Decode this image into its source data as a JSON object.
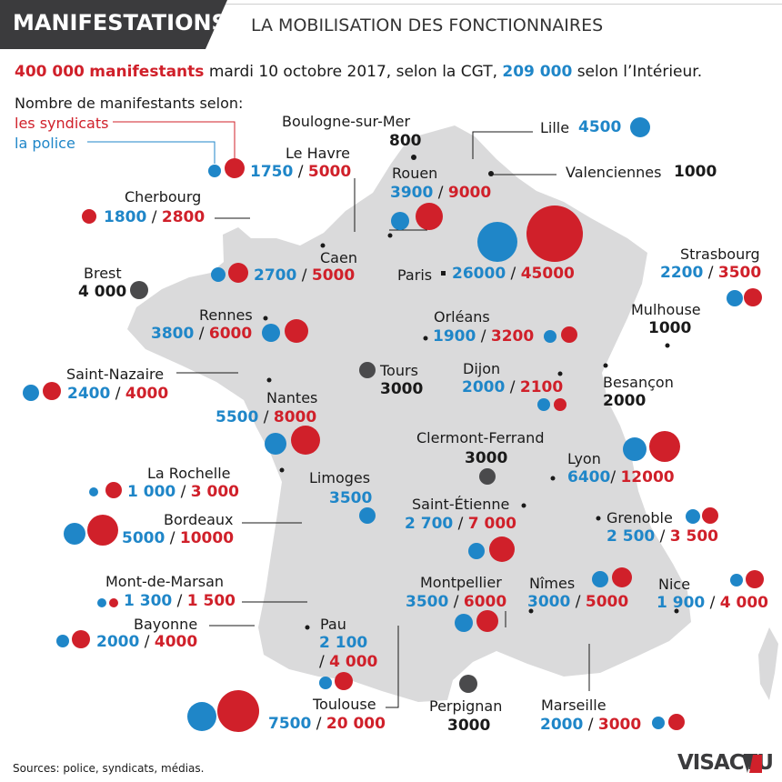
{
  "header": {
    "banner": "MANIFESTATIONS",
    "subtitle": "LA MOBILISATION DES FONCTIONNAIRES"
  },
  "headline": {
    "total_cgt": "400 000",
    "unit": "manifestants",
    "text_mid": "mardi 10 octobre 2017, selon la CGT,",
    "total_interior": "209 000",
    "text_end": "selon l’Intérieur."
  },
  "legend": {
    "title": "Nombre de manifestants selon:",
    "unions": "les syndicats",
    "police": "la police"
  },
  "colors": {
    "unions": "#d0202a",
    "police": "#1f86c8",
    "single": "#4a4a4c",
    "land": "#dadadb"
  },
  "cities": [
    {
      "name": "Boulogne-sur-Mer",
      "single": "800"
    },
    {
      "name": "Lille",
      "police": "4500"
    },
    {
      "name": "Le Havre",
      "police": "1750",
      "unions": "5000"
    },
    {
      "name": "Rouen",
      "police": "3900",
      "unions": "9000"
    },
    {
      "name": "Valenciennes",
      "single": "1000"
    },
    {
      "name": "Cherbourg",
      "police": "1800",
      "unions": "2800"
    },
    {
      "name": "Caen",
      "police": "2700",
      "unions": "5000"
    },
    {
      "name": "Paris",
      "police": "26000",
      "unions": "45000"
    },
    {
      "name": "Strasbourg",
      "police": "2200",
      "unions": "3500"
    },
    {
      "name": "Brest",
      "single": "4 000"
    },
    {
      "name": "Rennes",
      "police": "3800",
      "unions": "6000"
    },
    {
      "name": "Orléans",
      "police": "1900",
      "unions": "3200"
    },
    {
      "name": "Mulhouse",
      "single": "1000"
    },
    {
      "name": "Saint-Nazaire",
      "police": "2400",
      "unions": "4000"
    },
    {
      "name": "Tours",
      "single": "3000"
    },
    {
      "name": "Dijon",
      "police": "2000",
      "unions": "2100"
    },
    {
      "name": "Besançon",
      "single": "2000"
    },
    {
      "name": "Nantes",
      "police": "5500",
      "unions": "8000"
    },
    {
      "name": "Clermont-Ferrand",
      "single": "3000"
    },
    {
      "name": "Lyon",
      "police": "6400",
      "unions": "12000"
    },
    {
      "name": "La Rochelle",
      "police": "1 000",
      "unions": "3 000"
    },
    {
      "name": "Limoges",
      "police": "3500"
    },
    {
      "name": "Saint-Étienne",
      "police": "2 700",
      "unions": "7 000"
    },
    {
      "name": "Grenoble",
      "police": "2 500",
      "unions": "3 500"
    },
    {
      "name": "Bordeaux",
      "police": "5000",
      "unions": "10000"
    },
    {
      "name": "Mont-de-Marsan",
      "police": "1 300",
      "unions": "1 500"
    },
    {
      "name": "Montpellier",
      "police": "3500",
      "unions": "6000"
    },
    {
      "name": "Nîmes",
      "police": "3000",
      "unions": "5000"
    },
    {
      "name": "Nice",
      "police": "1 900",
      "unions": "4 000"
    },
    {
      "name": "Bayonne",
      "police": "2000",
      "unions": "4000"
    },
    {
      "name": "Pau",
      "police": "2 100",
      "unions": "4 000"
    },
    {
      "name": "Toulouse",
      "police": "7500",
      "unions": "20 000"
    },
    {
      "name": "Perpignan",
      "single": "3000"
    },
    {
      "name": "Marseille",
      "police": "2000",
      "unions": "3000"
    }
  ],
  "footer": {
    "source": "Sources: police, syndicats, médias.",
    "logo_a": "VIS",
    "logo_b": "ACTU"
  }
}
